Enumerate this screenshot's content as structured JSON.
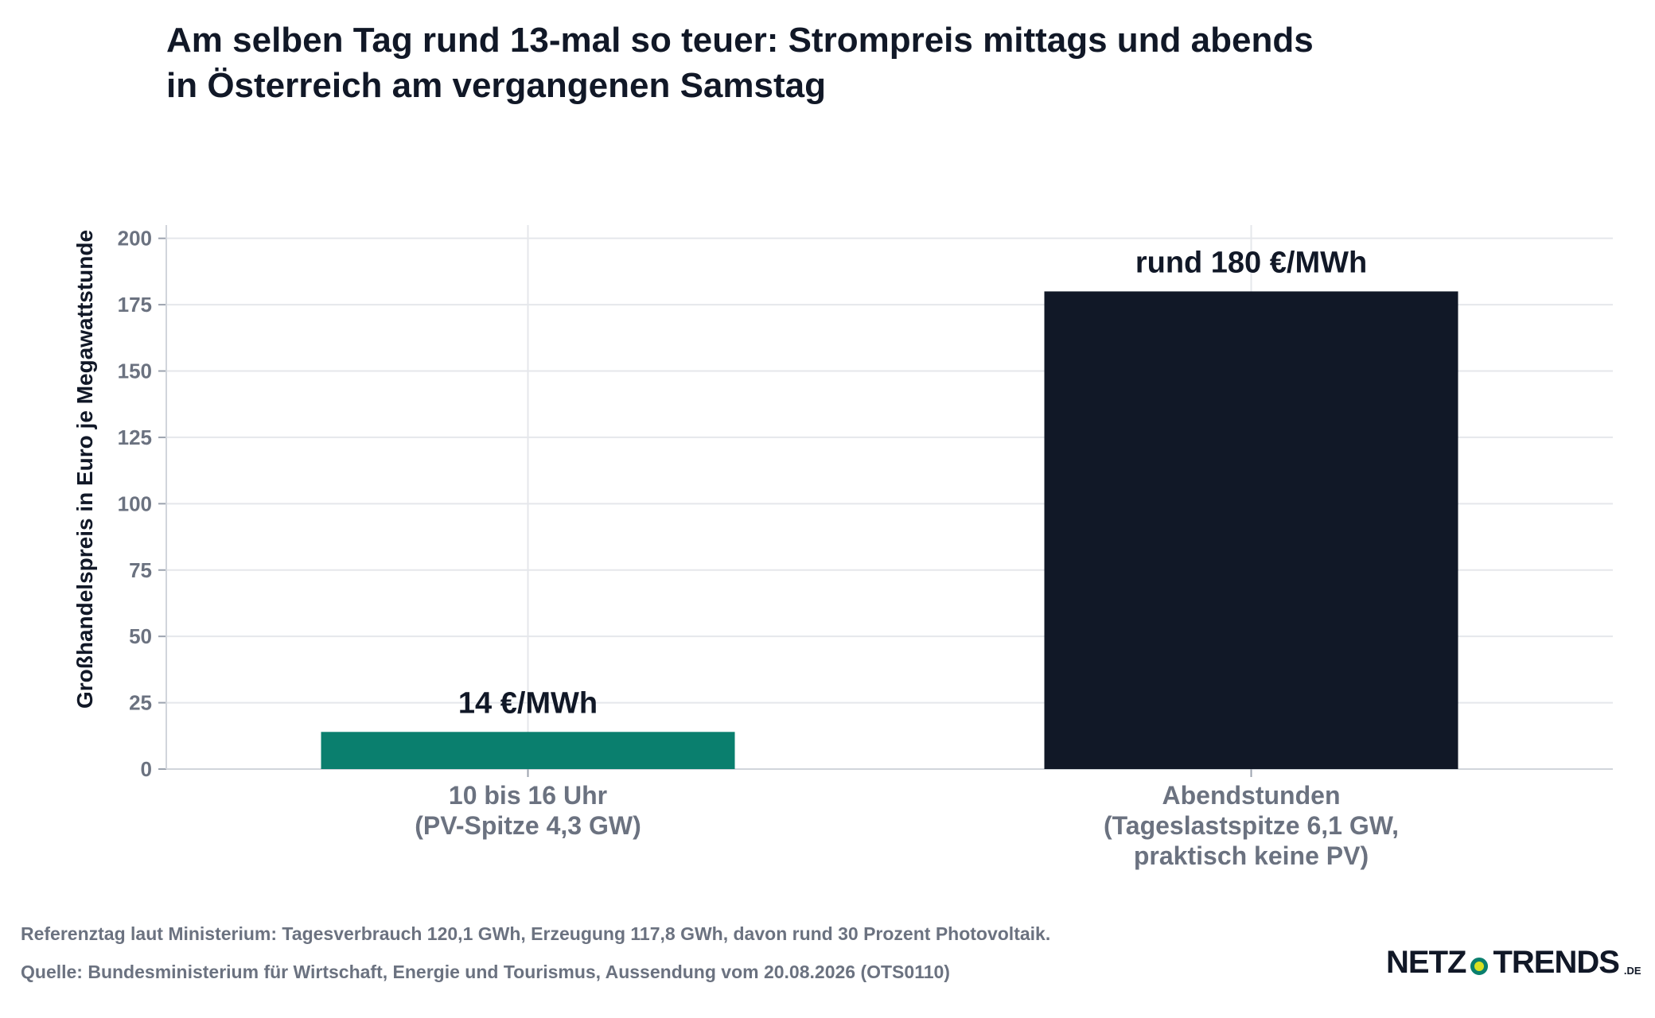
{
  "header": {
    "title_line1": "Am selben Tag rund 13-mal so teuer: Strompreis mittags und abends",
    "title_line2": "in Österreich am vergangenen Samstag"
  },
  "chart_data": {
    "type": "bar",
    "categories": [
      [
        "10 bis 16 Uhr",
        "(PV-Spitze 4,3 GW)"
      ],
      [
        "Abendstunden",
        "(Tageslastspitze 6,1 GW,",
        "praktisch keine PV)"
      ]
    ],
    "values": [
      14,
      180
    ],
    "data_labels": [
      "14 €/MWh",
      "rund 180 €/MWh"
    ],
    "bar_colors": [
      "#0a7f6e",
      "#111827"
    ],
    "ylabel": "Großhandelspreis in Euro je Megawattstunde",
    "xlabel": "",
    "ylim": [
      0,
      205
    ],
    "yticks": [
      0,
      25,
      50,
      75,
      100,
      125,
      150,
      175,
      200
    ],
    "grid": true
  },
  "footer": {
    "note": "Referenztag laut Ministerium: Tagesverbrauch 120,1 GWh, Erzeugung 117,8 GWh, davon rund 30 Prozent Photovoltaik.",
    "source": "Quelle: Bundesministerium für Wirtschaft, Energie und Tourismus, Aussendung vom 20.08.2026 (OTS0110)"
  },
  "logo": {
    "left": "NETZ",
    "right": "TRENDS",
    "tld": ".DE"
  }
}
